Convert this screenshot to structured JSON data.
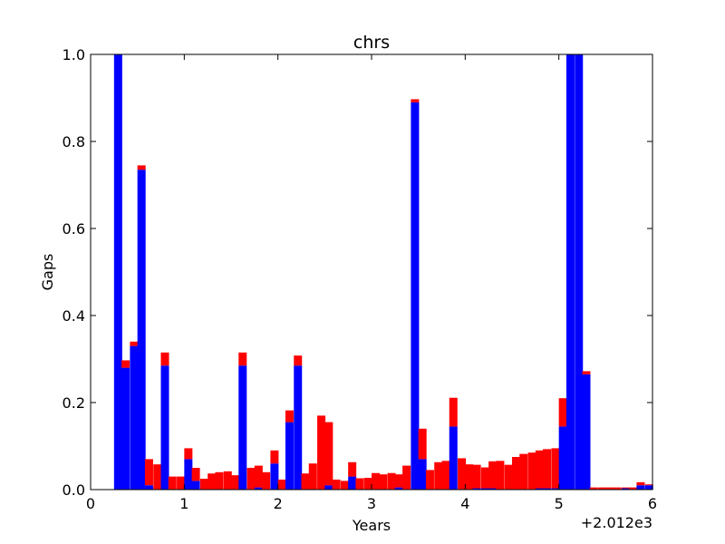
{
  "chart_data": {
    "type": "bar",
    "title": "chrs",
    "xlabel": "Years",
    "ylabel": "Gaps",
    "xlim": [
      0,
      6
    ],
    "ylim": [
      0,
      1.0
    ],
    "x_offset_label": "+2.012e3",
    "x_ticks": [
      "0",
      "1",
      "2",
      "3",
      "4",
      "5",
      "6"
    ],
    "y_ticks": [
      "0.0",
      "0.2",
      "0.4",
      "0.6",
      "0.8",
      "1.0"
    ],
    "grid": false,
    "bin_width": 0.0833,
    "x": [
      0.25,
      0.33,
      0.42,
      0.5,
      0.58,
      0.67,
      0.75,
      0.83,
      0.92,
      1.0,
      1.08,
      1.17,
      1.25,
      1.33,
      1.42,
      1.5,
      1.58,
      1.67,
      1.75,
      1.83,
      1.92,
      2.0,
      2.08,
      2.17,
      2.25,
      2.33,
      2.42,
      2.5,
      2.58,
      2.67,
      2.75,
      2.83,
      2.92,
      3.0,
      3.08,
      3.17,
      3.25,
      3.33,
      3.42,
      3.5,
      3.58,
      3.67,
      3.75,
      3.83,
      3.92,
      4.0,
      4.08,
      4.17,
      4.25,
      4.33,
      4.42,
      4.5,
      4.58,
      4.67,
      4.75,
      4.83,
      4.92,
      5.0,
      5.08,
      5.17,
      5.25,
      5.33,
      5.42,
      5.5,
      5.58,
      5.67,
      5.75,
      5.83,
      5.92
    ],
    "series": [
      {
        "color": "#0000ff",
        "values": [
          1.0,
          0.28,
          0.33,
          0.735,
          0.01,
          0.0,
          0.285,
          0.0,
          0.0,
          0.07,
          0.02,
          0.0,
          0.0,
          0.0,
          0.0,
          0.0,
          0.285,
          0.0,
          0.005,
          0.0,
          0.06,
          0.0,
          0.155,
          0.285,
          0.0,
          0.0,
          0.0,
          0.01,
          0.0,
          0.0,
          0.03,
          0.0,
          0.0,
          0.0,
          0.0,
          0.0,
          0.005,
          0.0,
          0.89,
          0.07,
          0.0,
          0.0,
          0.0,
          0.145,
          0.0,
          0.0,
          0.003,
          0.003,
          0.003,
          0.0,
          0.0,
          0.0,
          0.0,
          0.0,
          0.003,
          0.003,
          0.003,
          0.145,
          1.0,
          1.0,
          0.265,
          0.0,
          0.0,
          0.0,
          0.0,
          0.003,
          0.0,
          0.01,
          0.01
        ]
      },
      {
        "color": "#ff0000",
        "values": [
          0.0,
          0.017,
          0.01,
          0.01,
          0.06,
          0.058,
          0.03,
          0.03,
          0.03,
          0.025,
          0.03,
          0.025,
          0.037,
          0.04,
          0.042,
          0.033,
          0.03,
          0.05,
          0.05,
          0.04,
          0.03,
          0.023,
          0.027,
          0.023,
          0.037,
          0.06,
          0.17,
          0.145,
          0.023,
          0.02,
          0.033,
          0.026,
          0.027,
          0.038,
          0.035,
          0.038,
          0.03,
          0.055,
          0.007,
          0.07,
          0.045,
          0.063,
          0.066,
          0.066,
          0.072,
          0.058,
          0.054,
          0.048,
          0.062,
          0.066,
          0.057,
          0.075,
          0.082,
          0.085,
          0.087,
          0.09,
          0.092,
          0.065,
          0.0,
          0.0,
          0.007,
          0.005,
          0.005,
          0.005,
          0.005,
          0.002,
          0.005,
          0.007,
          0.002
        ]
      }
    ]
  }
}
